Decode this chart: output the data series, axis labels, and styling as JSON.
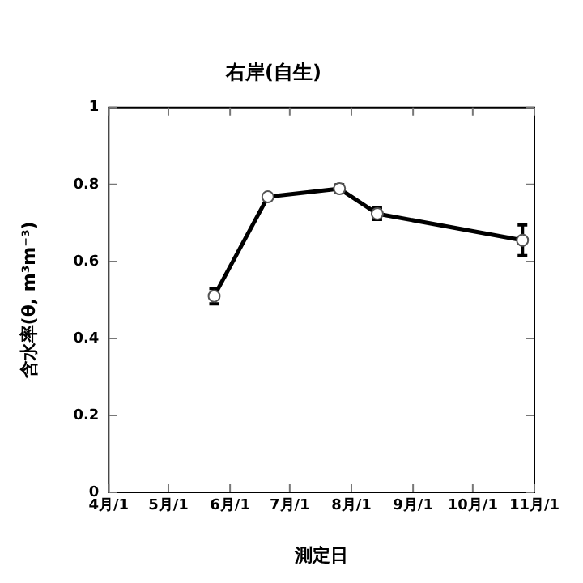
{
  "chart_data": {
    "type": "line",
    "title": "右岸(自生)",
    "xlabel": "測定日",
    "ylabel": "含水率(θ, m³m⁻³)",
    "x": [
      "--05-24",
      "--06-20",
      "--07-26",
      "--08-14",
      "--10-26"
    ],
    "series": [
      {
        "color": "#000000",
        "values": [
          0.51,
          0.768,
          0.789,
          0.724,
          0.655
        ],
        "errors": [
          0.02,
          0.005,
          0.01,
          0.015,
          0.04
        ]
      }
    ],
    "xlim": [
      "--04-01",
      "--11-01"
    ],
    "xticks": [
      {
        "value": "--04-01",
        "label": "4月/1"
      },
      {
        "value": "--05-01",
        "label": "5月/1"
      },
      {
        "value": "--06-01",
        "label": "6月/1"
      },
      {
        "value": "--07-01",
        "label": "7月/1"
      },
      {
        "value": "--08-01",
        "label": "8月/1"
      },
      {
        "value": "--09-01",
        "label": "9月/1"
      },
      {
        "value": "--10-01",
        "label": "10月/1"
      },
      {
        "value": "--11-01",
        "label": "11月/1"
      }
    ],
    "ylim": [
      0,
      1
    ],
    "yticks": [
      0,
      0.2,
      0.4,
      0.6,
      0.8,
      1
    ],
    "marker": "circle",
    "line_style": "solid",
    "grid": false,
    "legend": false
  }
}
